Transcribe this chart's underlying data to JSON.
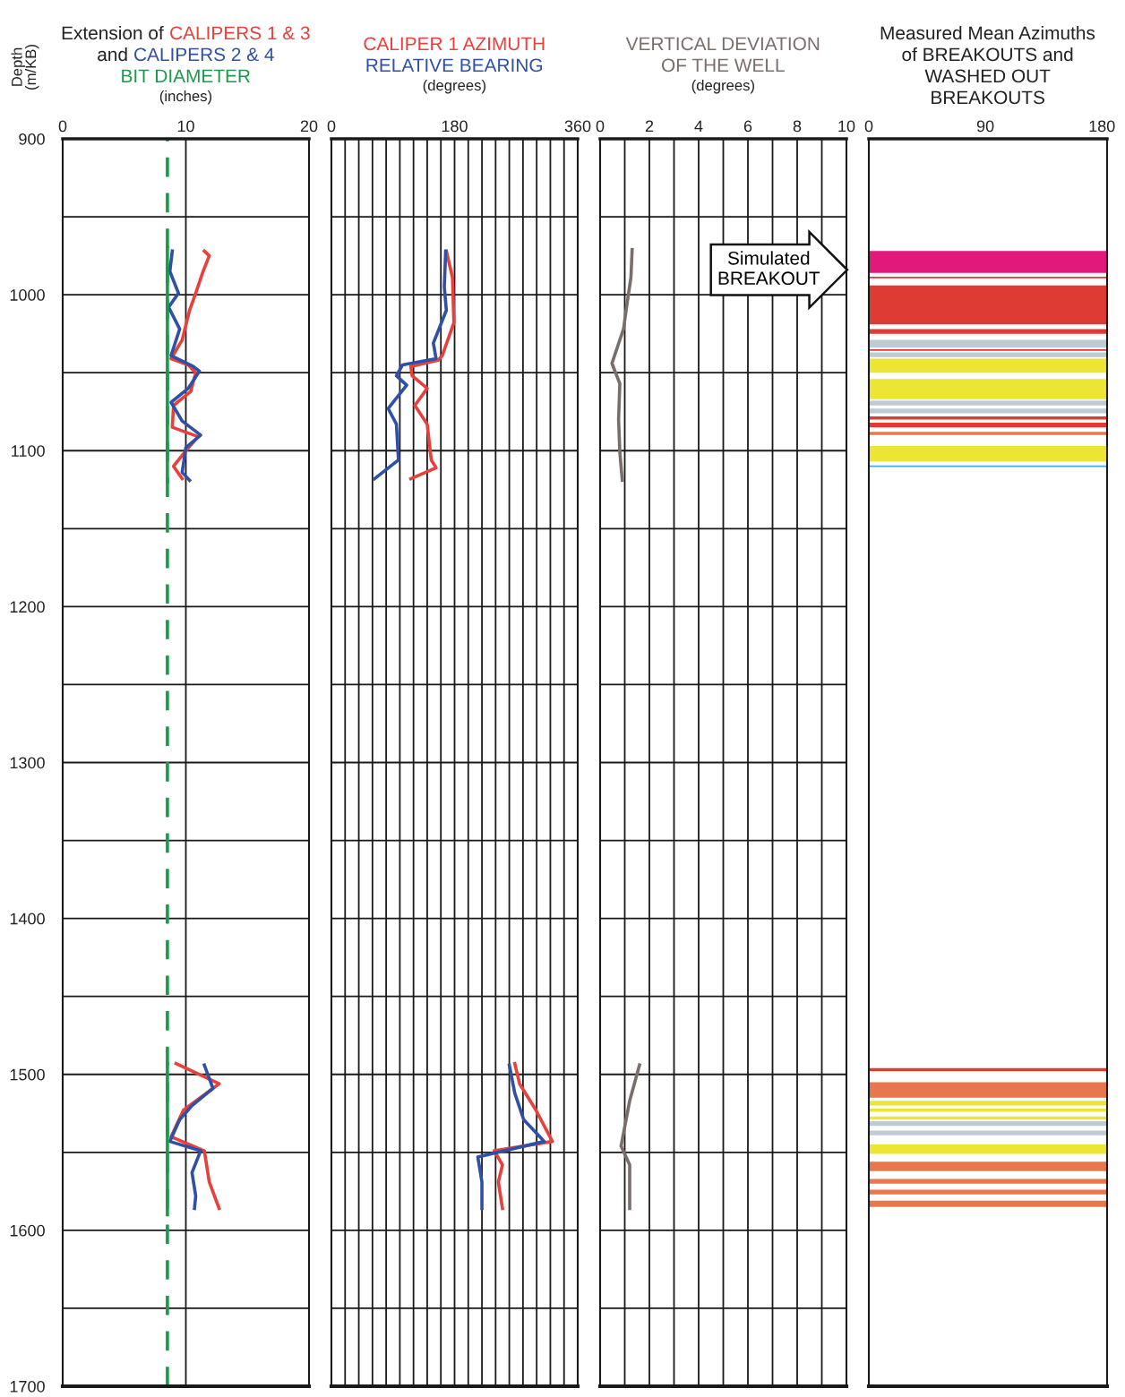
{
  "chart_data": [
    {
      "type": "line",
      "title": "Extension of",
      "subtitle": "and",
      "xlabel": "(inches)",
      "ylabel": "Depth\n(m/KB)",
      "xlim": [
        0,
        20
      ],
      "xticks": [
        0,
        10,
        20
      ],
      "ylim": [
        1700,
        900
      ],
      "yticks": [
        900,
        {
          "value": 950,
          "label": null
        },
        1000,
        {
          "value": 1050,
          "label": null
        },
        1100,
        {
          "value": 1150,
          "label": null
        },
        1200,
        {
          "value": 1250,
          "label": null
        },
        1300,
        {
          "value": 1350,
          "label": null
        },
        1400,
        {
          "value": 1450,
          "label": null
        },
        1500,
        {
          "value": 1550,
          "label": null
        },
        1600,
        {
          "value": 1650,
          "label": null
        },
        1700
      ],
      "grid": true,
      "series": [
        {
          "name": "CALIPERS 1 & 3",
          "color": "#e8413c",
          "x": [
            11.5,
            11.9,
            11.4,
            10.8,
            10.3,
            9.7,
            8.8,
            10.2,
            10.8,
            10.4,
            9.0,
            8.9,
            11.0,
            10.0,
            9.0,
            9.7,
            null,
            9.2,
            12.7,
            9.8,
            8.8,
            11.5,
            11.9,
            12.7
          ],
          "values": [
            972,
            975,
            985,
            999,
            1010,
            1029,
            1041,
            1045,
            1050,
            1062,
            1071,
            1085,
            1091,
            1100,
            1110,
            1118,
            null,
            1493,
            1506,
            1523,
            1540,
            1549,
            1569,
            1586
          ]
        },
        {
          "name": "CALIPERS 2 & 4",
          "color": "#3050a8",
          "x": [
            8.9,
            8.7,
            9.4,
            8.6,
            9.5,
            8.8,
            10.6,
            11.1,
            10.2,
            8.8,
            9.7,
            11.2,
            10.0,
            9.7,
            10.3,
            null,
            11.5,
            12.2,
            10.5,
            9.5,
            8.7,
            11.2,
            10.5,
            10.8,
            10.7
          ],
          "values": [
            972,
            985,
            999,
            1008,
            1022,
            1039,
            1046,
            1049,
            1060,
            1069,
            1081,
            1090,
            1098,
            1114,
            1119,
            null,
            1494,
            1509,
            1520,
            1529,
            1543,
            1549,
            1563,
            1578,
            1586
          ]
        },
        {
          "name": "BIT DIAMETER",
          "color": "#1a9a4a",
          "x": [
            8.5,
            8.5
          ],
          "values": [
            970,
            1120
          ]
        },
        {
          "color": "#1a9a4a",
          "x": [
            8.5,
            8.5
          ],
          "values": [
            1493,
            1590
          ]
        }
      ],
      "ref_lines": [
        {
          "axis": "x",
          "value": 8.5,
          "color": "#1a9a4a",
          "line_style": "dashed"
        }
      ]
    },
    {
      "type": "line",
      "xlabel": "(degrees)",
      "xlim": [
        0,
        360
      ],
      "xticks": [
        0,
        {
          "value": 20,
          "label": null
        },
        {
          "value": 40,
          "label": null
        },
        {
          "value": 60,
          "label": null
        },
        {
          "value": 80,
          "label": null
        },
        {
          "value": 100,
          "label": null
        },
        {
          "value": 120,
          "label": null
        },
        {
          "value": 140,
          "label": null
        },
        {
          "value": 160,
          "label": null
        },
        180,
        {
          "value": 200,
          "label": null
        },
        {
          "value": 220,
          "label": null
        },
        {
          "value": 240,
          "label": null
        },
        {
          "value": 260,
          "label": null
        },
        {
          "value": 280,
          "label": null
        },
        {
          "value": 300,
          "label": null
        },
        {
          "value": 320,
          "label": null
        },
        {
          "value": 340,
          "label": null
        },
        360
      ],
      "ylim": [
        1700,
        900
      ],
      "yticks": [
        900,
        950,
        1000,
        1050,
        1100,
        1150,
        1200,
        1250,
        1300,
        1350,
        1400,
        1450,
        1500,
        1550,
        1600,
        1650,
        1700
      ],
      "grid": true,
      "tick_labels": "x",
      "series": [
        {
          "name": "CALIPER 1 AZIMUTH",
          "color": "#e8413c",
          "x": [
            168,
            177,
            179,
            162,
            156,
            116,
            118,
            140,
            122,
            140,
            146,
            153,
            116,
            null,
            268,
            275,
            299,
            323,
            238,
            250,
            244,
            250
          ],
          "values": [
            972,
            989,
            1018,
            1039,
            1042,
            1046,
            1052,
            1060,
            1071,
            1083,
            1106,
            1111,
            1118,
            null,
            1493,
            1506,
            1523,
            1543,
            1549,
            1558,
            1569,
            1586
          ]
        },
        {
          "name": "RELATIVE BEARING",
          "color": "#3050a8",
          "x": [
            167,
            165,
            168,
            149,
            153,
            104,
            95,
            110,
            83,
            95,
            98,
            63,
            null,
            260,
            268,
            281,
            311,
            214,
            220,
            220
          ],
          "values": [
            972,
            995,
            1010,
            1031,
            1041,
            1045,
            1052,
            1058,
            1073,
            1083,
            1106,
            1118,
            null,
            1494,
            1512,
            1529,
            1543,
            1553,
            1569,
            1586
          ]
        }
      ]
    },
    {
      "type": "line",
      "xlabel": "(degrees)",
      "xlim": [
        0,
        10
      ],
      "xticks": [
        0,
        {
          "value": 1,
          "label": null
        },
        2,
        {
          "value": 3,
          "label": null
        },
        4,
        {
          "value": 5,
          "label": null
        },
        6,
        {
          "value": 7,
          "label": null
        },
        8,
        {
          "value": 9,
          "label": null
        },
        10
      ],
      "ylim": [
        1700,
        900
      ],
      "yticks": [
        900,
        950,
        1000,
        1050,
        1100,
        1150,
        1200,
        1250,
        1300,
        1350,
        1400,
        1450,
        1500,
        1550,
        1600,
        1650,
        1700
      ],
      "grid": true,
      "tick_labels": "x",
      "series": [
        {
          "name": "VERTICAL DEVIATION\nOF THE WELL",
          "color": "#7a6e6a",
          "x": [
            1.3,
            1.25,
            1.1,
            0.95,
            0.48,
            0.8,
            0.75,
            0.8,
            0.9,
            null,
            1.6,
            1.2,
            0.85,
            1.2,
            1.2
          ],
          "values": [
            971,
            989,
            1005,
            1022,
            1044,
            1057,
            1080,
            1101,
            1119,
            null,
            1494,
            1517,
            1546,
            1558,
            1586
          ]
        }
      ]
    },
    {
      "type": "line",
      "title": "Measured Mean Azimuths\nof BREAKOUTS and\nWASHED OUT\nBREAKOUTS",
      "xlim": [
        0,
        184
      ],
      "xticks": [
        0,
        90,
        180
      ],
      "ylim": [
        1700,
        900
      ],
      "tick_labels": "x",
      "annotations": [
        "Simulated\nBREAKOUT"
      ],
      "bands": [
        {
          "axis": "y",
          "from": 972,
          "to": 986,
          "color": "#e0197a"
        },
        {
          "axis": "y",
          "from": 988.5,
          "to": 989.5,
          "color": "#dd3b33"
        },
        {
          "axis": "y",
          "from": 994,
          "to": 1019,
          "color": "#dd3b33"
        },
        {
          "axis": "y",
          "from": 1022,
          "to": 1025,
          "color": "#dd3b33"
        },
        {
          "axis": "y",
          "from": 1029,
          "to": 1034,
          "color": "#bfcad3"
        },
        {
          "axis": "y",
          "from": 1035,
          "to": 1036,
          "color": "#dd3b33"
        },
        {
          "axis": "y",
          "from": 1037,
          "to": 1040,
          "color": "#bfcad3"
        },
        {
          "axis": "y",
          "from": 1041,
          "to": 1050,
          "color": "#ece534"
        },
        {
          "axis": "y",
          "from": 1054,
          "to": 1067,
          "color": "#ece534"
        },
        {
          "axis": "y",
          "from": 1068,
          "to": 1071,
          "color": "#bfcad3"
        },
        {
          "axis": "y",
          "from": 1073,
          "to": 1076,
          "color": "#bfcad3"
        },
        {
          "axis": "y",
          "from": 1078,
          "to": 1080,
          "color": "#dd3b33"
        },
        {
          "axis": "y",
          "from": 1082,
          "to": 1085,
          "color": "#dd3b33"
        },
        {
          "axis": "y",
          "from": 1088,
          "to": 1090,
          "color": "#e8764e"
        },
        {
          "axis": "y",
          "from": 1097,
          "to": 1107,
          "color": "#ece534"
        },
        {
          "axis": "y",
          "from": 1109.5,
          "to": 1110.5,
          "color": "#4aa8e0"
        },
        {
          "axis": "y",
          "from": 1496,
          "to": 1498,
          "color": "#dd3b33"
        },
        {
          "axis": "y",
          "from": 1505,
          "to": 1515,
          "color": "#e8764e"
        },
        {
          "axis": "y",
          "from": 1517,
          "to": 1520,
          "color": "#ece534"
        },
        {
          "axis": "y",
          "from": 1522,
          "to": 1524,
          "color": "#ece534"
        },
        {
          "axis": "y",
          "from": 1527,
          "to": 1529,
          "color": "#ece534"
        },
        {
          "axis": "y",
          "from": 1530,
          "to": 1533,
          "color": "#bfcad3"
        },
        {
          "axis": "y",
          "from": 1536,
          "to": 1539,
          "color": "#bfcad3"
        },
        {
          "axis": "y",
          "from": 1545,
          "to": 1551,
          "color": "#ece534"
        },
        {
          "axis": "y",
          "from": 1556,
          "to": 1562,
          "color": "#e8764e"
        },
        {
          "axis": "y",
          "from": 1567,
          "to": 1570,
          "color": "#e8764e"
        },
        {
          "axis": "y",
          "from": 1574,
          "to": 1577,
          "color": "#e8764e"
        },
        {
          "axis": "y",
          "from": 1581,
          "to": 1585,
          "color": "#e8764e"
        }
      ]
    }
  ]
}
